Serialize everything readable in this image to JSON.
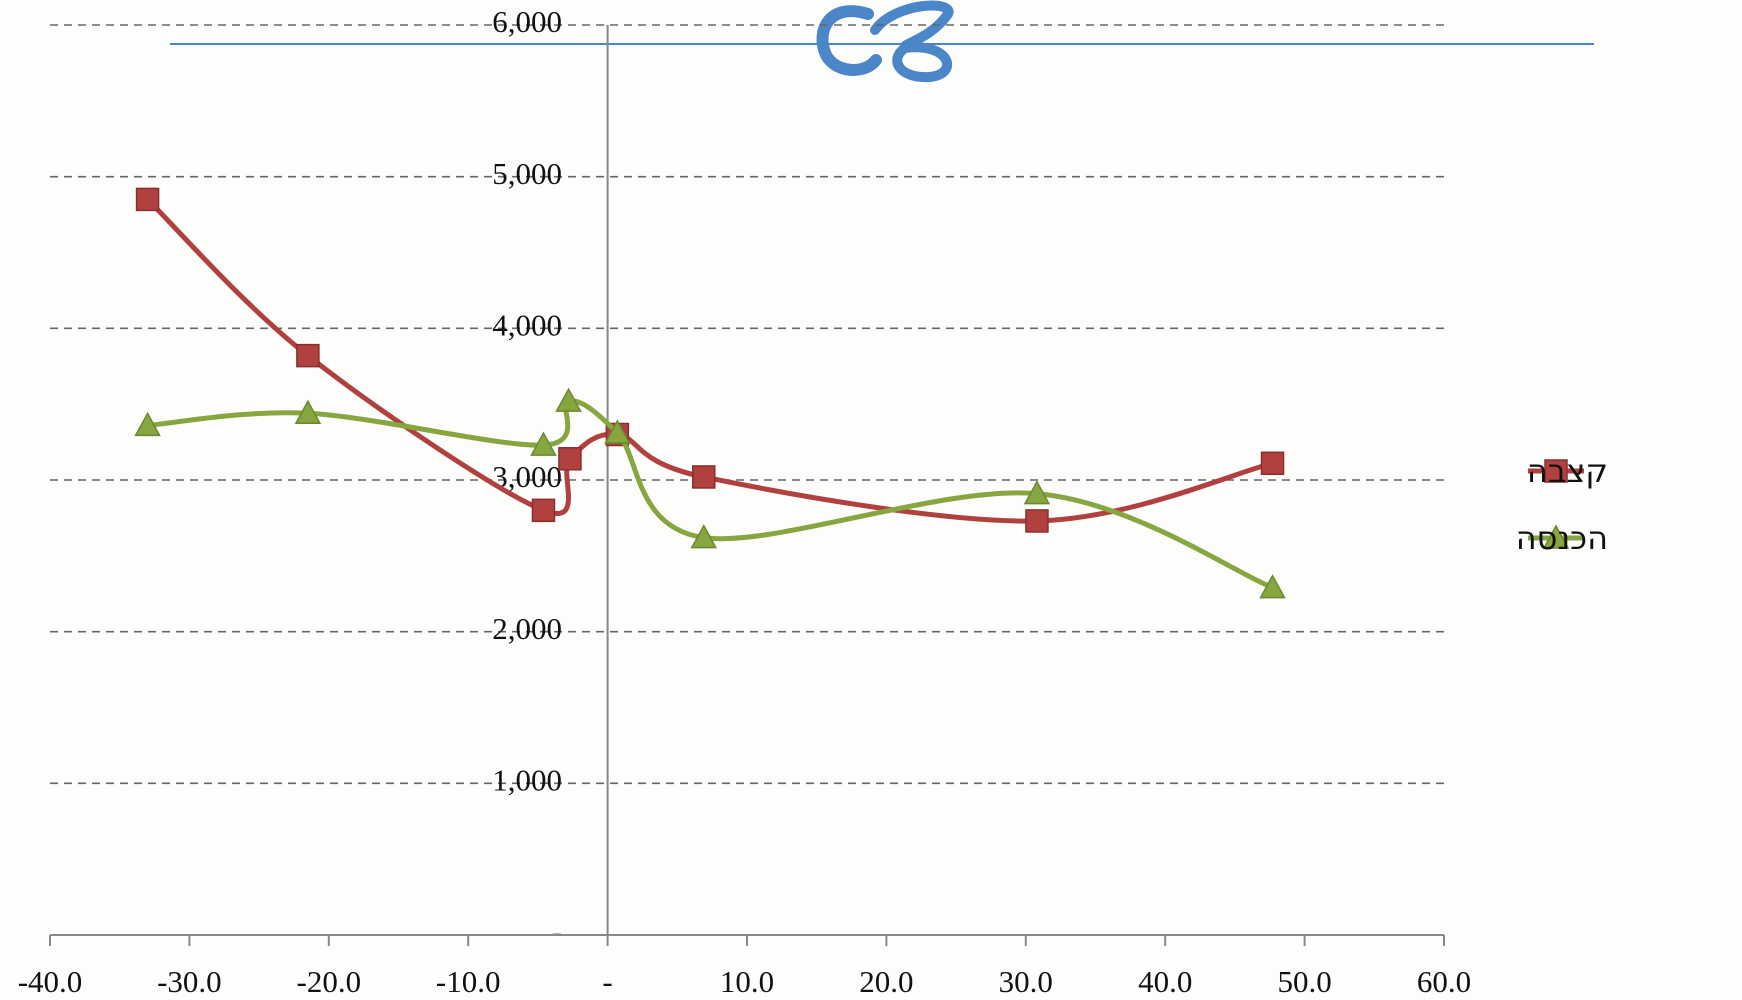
{
  "chart_data": {
    "type": "line",
    "xlim": [
      -40,
      60
    ],
    "ylim": [
      0,
      6000
    ],
    "xticks": [
      {
        "value": -40,
        "label": "-40.0"
      },
      {
        "value": -30,
        "label": "-30.0"
      },
      {
        "value": -20,
        "label": "-20.0"
      },
      {
        "value": -10,
        "label": "-10.0"
      },
      {
        "value": 0,
        "label": "-"
      },
      {
        "value": 10,
        "label": "10.0"
      },
      {
        "value": 20,
        "label": "20.0"
      },
      {
        "value": 30,
        "label": "30.0"
      },
      {
        "value": 40,
        "label": "40.0"
      },
      {
        "value": 50,
        "label": "50.0"
      },
      {
        "value": 60,
        "label": "60.0"
      }
    ],
    "yticks": [
      {
        "value": 0,
        "label": "-"
      },
      {
        "value": 1000,
        "label": "1,000"
      },
      {
        "value": 2000,
        "label": "2,000"
      },
      {
        "value": 3000,
        "label": "3,000"
      },
      {
        "value": 4000,
        "label": "4,000"
      },
      {
        "value": 5000,
        "label": "5,000"
      },
      {
        "value": 6000,
        "label": "6,000"
      }
    ],
    "grid": true,
    "smooth": true,
    "legend": "right",
    "series": [
      {
        "name": "קצבה",
        "color": "#b0413e",
        "marker": "square",
        "x": [
          -33.0,
          -21.5,
          -4.6,
          -2.7,
          0.7,
          6.9,
          30.8,
          47.7
        ],
        "values": [
          4850,
          3820,
          2800,
          3140,
          3300,
          3020,
          2730,
          3110
        ]
      },
      {
        "name": "הכנסה",
        "color": "#86a640",
        "marker": "triangle",
        "x": [
          -33.0,
          -21.5,
          -4.6,
          -2.8,
          0.7,
          6.9,
          30.8,
          47.7
        ],
        "values": [
          3360,
          3440,
          3230,
          3520,
          3310,
          2620,
          2910,
          2290
        ]
      }
    ]
  }
}
